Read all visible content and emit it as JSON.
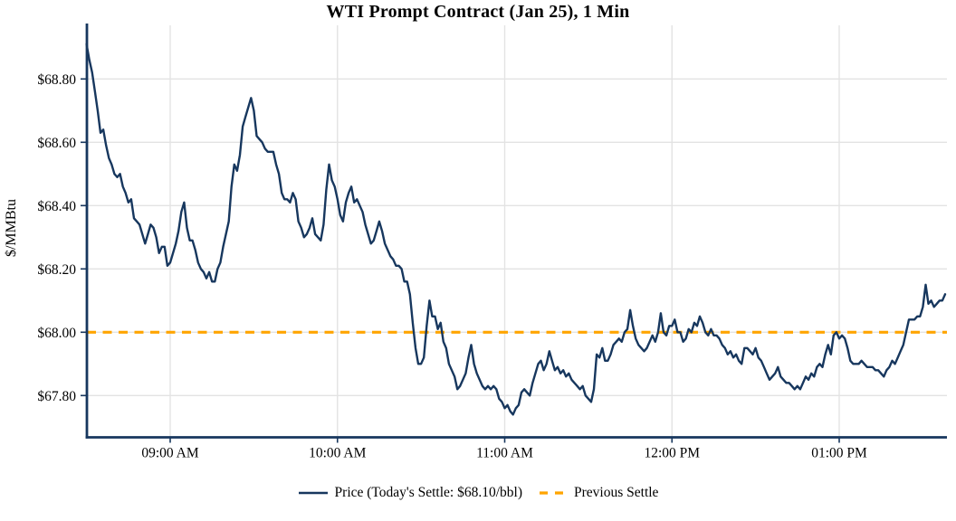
{
  "chart_data": {
    "type": "line",
    "title": "WTI Prompt Contract (Jan 25), 1 Min",
    "ylabel": "$/MMBtu",
    "interval": "1 Min",
    "x_start_time": "08:30 AM",
    "x_end_time": "01:38 PM",
    "x_ticks": [
      {
        "minute": 30,
        "label": "09:00 AM"
      },
      {
        "minute": 90,
        "label": "10:00 AM"
      },
      {
        "minute": 150,
        "label": "11:00 AM"
      },
      {
        "minute": 210,
        "label": "12:00 PM"
      },
      {
        "minute": 270,
        "label": "01:00 PM"
      }
    ],
    "y_ticks": [
      {
        "value": 68.8,
        "label": "$68.80"
      },
      {
        "value": 68.6,
        "label": "$68.60"
      },
      {
        "value": 68.4,
        "label": "$68.40"
      },
      {
        "value": 68.2,
        "label": "$68.20"
      },
      {
        "value": 68.0,
        "label": "$68.00"
      },
      {
        "value": 67.8,
        "label": "$67.80"
      }
    ],
    "ylim": [
      67.66,
      68.97
    ],
    "grid": true,
    "legend_position": "bottom-center",
    "series": [
      {
        "name": "Price (Today's Settle: $68.10/bbl)",
        "style": "solid",
        "color": "#17375E",
        "minutes_start": 0,
        "minute_step": 1,
        "values": [
          68.91,
          68.86,
          68.82,
          68.76,
          68.7,
          68.63,
          68.64,
          68.59,
          68.55,
          68.53,
          68.5,
          68.49,
          68.5,
          68.46,
          68.44,
          68.41,
          68.42,
          68.36,
          68.35,
          68.34,
          68.31,
          68.28,
          68.31,
          68.34,
          68.33,
          68.3,
          68.25,
          68.27,
          68.27,
          68.21,
          68.22,
          68.25,
          68.28,
          68.32,
          68.38,
          68.41,
          68.33,
          68.29,
          68.29,
          68.26,
          68.22,
          68.2,
          68.19,
          68.17,
          68.19,
          68.16,
          68.16,
          68.2,
          68.22,
          68.27,
          68.31,
          68.35,
          68.46,
          68.53,
          68.51,
          68.56,
          68.65,
          68.68,
          68.71,
          68.74,
          68.7,
          68.62,
          68.61,
          68.6,
          68.58,
          68.57,
          68.57,
          68.57,
          68.53,
          68.5,
          68.44,
          68.42,
          68.42,
          68.41,
          68.44,
          68.42,
          68.35,
          68.33,
          68.3,
          68.31,
          68.33,
          68.36,
          68.31,
          68.3,
          68.29,
          68.34,
          68.45,
          68.53,
          68.48,
          68.46,
          68.42,
          68.37,
          68.35,
          68.41,
          68.44,
          68.46,
          68.41,
          68.42,
          68.4,
          68.38,
          68.34,
          68.31,
          68.28,
          68.29,
          68.32,
          68.35,
          68.32,
          68.28,
          68.26,
          68.24,
          68.23,
          68.21,
          68.21,
          68.2,
          68.16,
          68.16,
          68.12,
          68.03,
          67.95,
          67.9,
          67.9,
          67.92,
          68.02,
          68.1,
          68.05,
          68.05,
          68.01,
          68.03,
          67.97,
          67.95,
          67.9,
          67.88,
          67.86,
          67.82,
          67.83,
          67.85,
          67.87,
          67.92,
          67.96,
          67.9,
          67.87,
          67.85,
          67.83,
          67.82,
          67.83,
          67.82,
          67.83,
          67.82,
          67.79,
          67.78,
          67.76,
          67.77,
          67.75,
          67.74,
          67.76,
          67.77,
          67.81,
          67.82,
          67.81,
          67.8,
          67.84,
          67.87,
          67.9,
          67.91,
          67.88,
          67.9,
          67.94,
          67.91,
          67.88,
          67.89,
          67.87,
          67.88,
          67.86,
          67.87,
          67.85,
          67.84,
          67.83,
          67.82,
          67.83,
          67.8,
          67.79,
          67.78,
          67.82,
          67.93,
          67.92,
          67.95,
          67.91,
          67.91,
          67.93,
          67.96,
          67.97,
          67.98,
          67.97,
          68.0,
          68.01,
          68.07,
          68.02,
          67.98,
          67.96,
          67.95,
          67.94,
          67.95,
          67.97,
          67.99,
          67.97,
          68.0,
          68.06,
          68.0,
          67.99,
          68.02,
          68.02,
          68.04,
          68.0,
          68.0,
          67.97,
          67.98,
          68.01,
          68.0,
          68.03,
          68.02,
          68.05,
          68.03,
          68.0,
          67.99,
          68.01,
          67.99,
          67.99,
          67.98,
          67.96,
          67.95,
          67.93,
          67.94,
          67.92,
          67.93,
          67.91,
          67.9,
          67.95,
          67.95,
          67.94,
          67.93,
          67.95,
          67.92,
          67.91,
          67.89,
          67.87,
          67.85,
          67.86,
          67.87,
          67.89,
          67.86,
          67.85,
          67.84,
          67.84,
          67.83,
          67.82,
          67.83,
          67.82,
          67.84,
          67.86,
          67.85,
          67.87,
          67.86,
          67.89,
          67.9,
          67.89,
          67.93,
          67.96,
          67.93,
          67.99,
          68.0,
          67.98,
          67.99,
          67.98,
          67.95,
          67.91,
          67.9,
          67.9,
          67.9,
          67.91,
          67.9,
          67.89,
          67.89,
          67.89,
          67.88,
          67.88,
          67.87,
          67.86,
          67.88,
          67.89,
          67.91,
          67.9,
          67.92,
          67.94,
          67.96,
          68.0,
          68.04,
          68.04,
          68.04,
          68.05,
          68.05,
          68.08,
          68.15,
          68.09,
          68.1,
          68.08,
          68.09,
          68.1,
          68.1,
          68.12
        ]
      },
      {
        "name": "Previous Settle",
        "style": "dashed",
        "color": "#FFA500",
        "value": 68.0
      }
    ]
  },
  "legend": {
    "price_label": "Price (Today's Settle: $68.10/bbl)",
    "settle_label": "Previous Settle"
  },
  "colors": {
    "price_line": "#17375E",
    "settle_line": "#FFA500",
    "gridline": "#E3E3E3",
    "axis": "#17375E",
    "background": "#FFFFFF",
    "text": "#000000"
  }
}
